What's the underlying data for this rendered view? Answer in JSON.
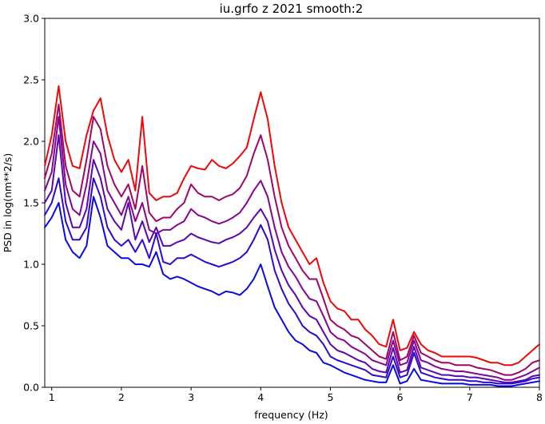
{
  "chart_data": {
    "type": "line",
    "title": "iu.grfo z 2021 smooth:2",
    "xlabel": "frequency (Hz)",
    "ylabel": "PSD in log(nm**2/s)",
    "xlim": [
      0.9,
      8.0
    ],
    "ylim": [
      0.0,
      3.0
    ],
    "xscale": "linear",
    "grid": false,
    "legend": "none",
    "xticks": [
      1,
      2,
      3,
      4,
      5,
      6,
      7,
      8
    ],
    "yticks": [
      0.0,
      0.5,
      1.0,
      1.5,
      2.0,
      2.5,
      3.0
    ],
    "xtick_labels": [
      "1",
      "2",
      "3",
      "4",
      "5",
      "6",
      "7",
      "8"
    ],
    "ytick_labels": [
      "0.0",
      "0.5",
      "1.0",
      "1.5",
      "2.0",
      "2.5",
      "3.0"
    ],
    "x": [
      0.9,
      1.0,
      1.1,
      1.2,
      1.3,
      1.4,
      1.5,
      1.6,
      1.7,
      1.8,
      1.9,
      2.0,
      2.1,
      2.2,
      2.3,
      2.4,
      2.5,
      2.6,
      2.7,
      2.8,
      2.9,
      3.0,
      3.1,
      3.2,
      3.3,
      3.4,
      3.5,
      3.6,
      3.7,
      3.8,
      3.9,
      4.0,
      4.1,
      4.2,
      4.3,
      4.4,
      4.5,
      4.6,
      4.7,
      4.8,
      4.9,
      5.0,
      5.1,
      5.2,
      5.3,
      5.4,
      5.5,
      5.6,
      5.7,
      5.8,
      5.9,
      6.0,
      6.1,
      6.2,
      6.3,
      6.4,
      6.5,
      6.6,
      6.7,
      6.8,
      6.9,
      7.0,
      7.1,
      7.2,
      7.3,
      7.4,
      7.5,
      7.6,
      7.7,
      7.8,
      7.9,
      8.0
    ],
    "series": [
      {
        "color": "#ee0808",
        "values": [
          1.8,
          2.05,
          2.45,
          2.0,
          1.8,
          1.78,
          2.05,
          2.25,
          2.35,
          2.05,
          1.85,
          1.75,
          1.85,
          1.6,
          2.2,
          1.58,
          1.52,
          1.55,
          1.55,
          1.58,
          1.7,
          1.8,
          1.78,
          1.77,
          1.85,
          1.8,
          1.78,
          1.82,
          1.88,
          1.95,
          2.18,
          2.4,
          2.18,
          1.8,
          1.5,
          1.3,
          1.2,
          1.1,
          1.0,
          1.05,
          0.85,
          0.7,
          0.64,
          0.62,
          0.55,
          0.55,
          0.47,
          0.42,
          0.35,
          0.33,
          0.55,
          0.3,
          0.32,
          0.45,
          0.35,
          0.3,
          0.28,
          0.25,
          0.25,
          0.25,
          0.25,
          0.25,
          0.24,
          0.22,
          0.2,
          0.2,
          0.18,
          0.18,
          0.2,
          0.25,
          0.3,
          0.35
        ]
      },
      {
        "color": "#a00666",
        "values": [
          1.7,
          1.9,
          2.3,
          1.8,
          1.6,
          1.55,
          1.85,
          2.2,
          2.1,
          1.8,
          1.65,
          1.55,
          1.65,
          1.45,
          1.8,
          1.42,
          1.35,
          1.38,
          1.38,
          1.45,
          1.5,
          1.65,
          1.58,
          1.55,
          1.55,
          1.52,
          1.55,
          1.57,
          1.62,
          1.72,
          1.9,
          2.05,
          1.85,
          1.55,
          1.3,
          1.15,
          1.05,
          0.95,
          0.88,
          0.88,
          0.72,
          0.55,
          0.5,
          0.47,
          0.42,
          0.4,
          0.35,
          0.3,
          0.25,
          0.23,
          0.45,
          0.22,
          0.25,
          0.42,
          0.28,
          0.25,
          0.22,
          0.2,
          0.2,
          0.18,
          0.18,
          0.18,
          0.16,
          0.15,
          0.14,
          0.12,
          0.1,
          0.1,
          0.12,
          0.15,
          0.2,
          0.22
        ]
      },
      {
        "color": "#860590",
        "values": [
          1.6,
          1.75,
          2.2,
          1.65,
          1.45,
          1.4,
          1.65,
          2.0,
          1.9,
          1.6,
          1.5,
          1.4,
          1.55,
          1.35,
          1.5,
          1.28,
          1.25,
          1.28,
          1.28,
          1.32,
          1.35,
          1.45,
          1.4,
          1.38,
          1.35,
          1.33,
          1.35,
          1.38,
          1.42,
          1.5,
          1.6,
          1.68,
          1.55,
          1.3,
          1.1,
          0.98,
          0.9,
          0.8,
          0.72,
          0.7,
          0.58,
          0.45,
          0.4,
          0.38,
          0.33,
          0.3,
          0.27,
          0.22,
          0.2,
          0.18,
          0.38,
          0.18,
          0.2,
          0.38,
          0.22,
          0.2,
          0.17,
          0.15,
          0.14,
          0.13,
          0.13,
          0.12,
          0.11,
          0.1,
          0.09,
          0.08,
          0.06,
          0.06,
          0.08,
          0.1,
          0.13,
          0.16
        ]
      },
      {
        "color": "#5a06b2",
        "values": [
          1.5,
          1.6,
          2.05,
          1.5,
          1.3,
          1.3,
          1.45,
          1.85,
          1.7,
          1.45,
          1.35,
          1.28,
          1.5,
          1.2,
          1.35,
          1.18,
          1.3,
          1.15,
          1.15,
          1.18,
          1.2,
          1.25,
          1.22,
          1.2,
          1.18,
          1.17,
          1.2,
          1.22,
          1.25,
          1.3,
          1.38,
          1.45,
          1.35,
          1.12,
          0.95,
          0.83,
          0.75,
          0.65,
          0.58,
          0.55,
          0.45,
          0.35,
          0.3,
          0.28,
          0.25,
          0.22,
          0.2,
          0.15,
          0.13,
          0.12,
          0.32,
          0.12,
          0.14,
          0.33,
          0.16,
          0.14,
          0.12,
          0.1,
          0.1,
          0.09,
          0.09,
          0.08,
          0.08,
          0.07,
          0.06,
          0.05,
          0.04,
          0.04,
          0.05,
          0.06,
          0.09,
          0.1
        ]
      },
      {
        "color": "#3008d0",
        "values": [
          1.4,
          1.5,
          1.7,
          1.35,
          1.2,
          1.2,
          1.3,
          1.7,
          1.55,
          1.3,
          1.2,
          1.15,
          1.2,
          1.1,
          1.2,
          1.05,
          1.25,
          1.02,
          1.0,
          1.05,
          1.05,
          1.08,
          1.05,
          1.02,
          1.0,
          0.98,
          1.0,
          1.02,
          1.05,
          1.1,
          1.2,
          1.32,
          1.2,
          0.95,
          0.8,
          0.68,
          0.6,
          0.5,
          0.45,
          0.42,
          0.35,
          0.25,
          0.22,
          0.2,
          0.18,
          0.16,
          0.14,
          0.1,
          0.09,
          0.08,
          0.25,
          0.08,
          0.1,
          0.28,
          0.12,
          0.1,
          0.08,
          0.07,
          0.06,
          0.06,
          0.06,
          0.05,
          0.05,
          0.04,
          0.04,
          0.03,
          0.03,
          0.03,
          0.04,
          0.05,
          0.07,
          0.08
        ]
      },
      {
        "color": "#0a0ae6",
        "values": [
          1.3,
          1.38,
          1.5,
          1.2,
          1.1,
          1.05,
          1.15,
          1.55,
          1.38,
          1.15,
          1.1,
          1.05,
          1.05,
          1.0,
          1.0,
          0.98,
          1.1,
          0.92,
          0.88,
          0.9,
          0.88,
          0.85,
          0.82,
          0.8,
          0.78,
          0.75,
          0.78,
          0.77,
          0.75,
          0.8,
          0.88,
          1.0,
          0.82,
          0.65,
          0.55,
          0.45,
          0.38,
          0.35,
          0.3,
          0.28,
          0.2,
          0.18,
          0.15,
          0.12,
          0.1,
          0.08,
          0.06,
          0.05,
          0.04,
          0.04,
          0.18,
          0.03,
          0.05,
          0.15,
          0.06,
          0.05,
          0.04,
          0.03,
          0.03,
          0.03,
          0.03,
          0.02,
          0.02,
          0.02,
          0.02,
          0.01,
          0.01,
          0.01,
          0.02,
          0.03,
          0.04,
          0.05
        ]
      }
    ]
  }
}
